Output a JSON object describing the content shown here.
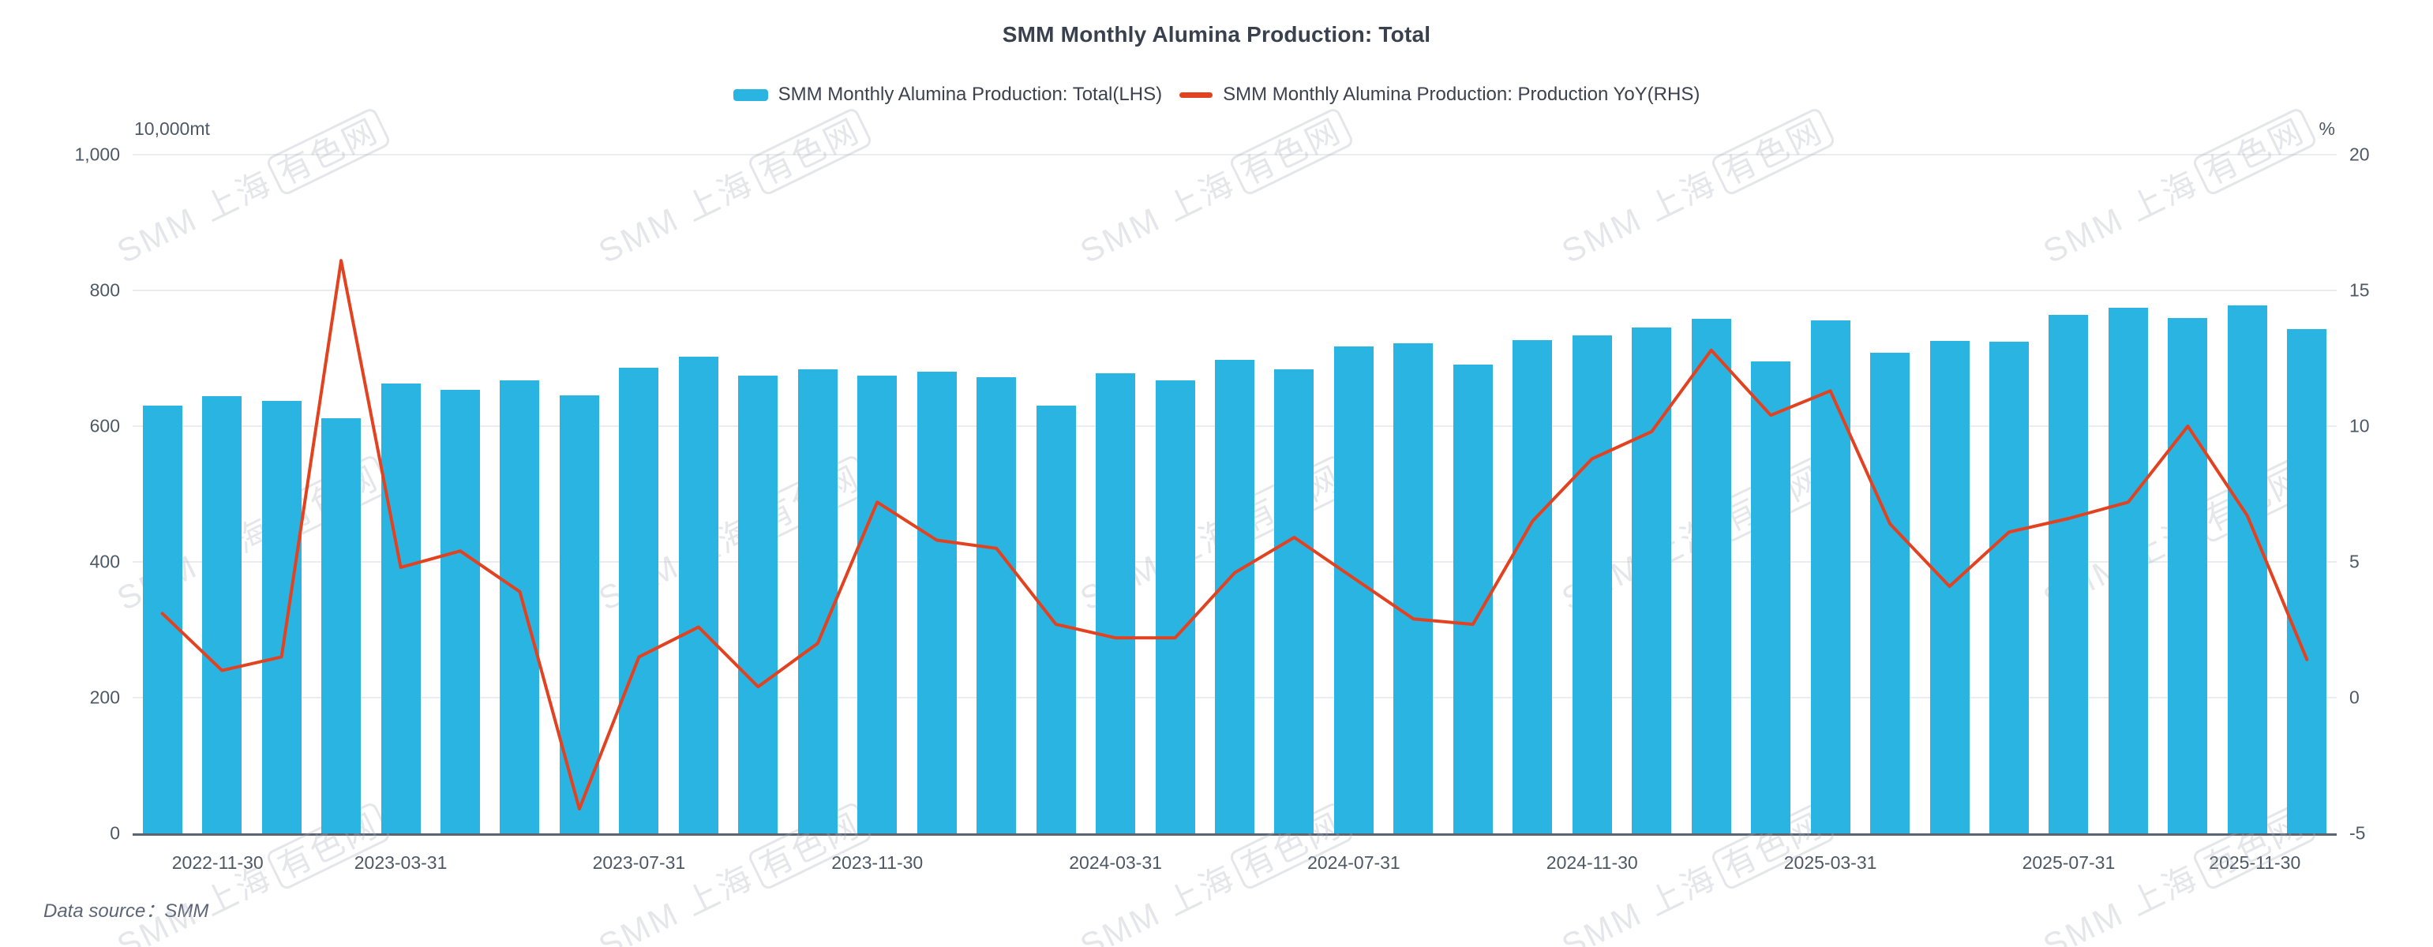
{
  "title": "SMM Monthly Alumina Production: Total",
  "legend": [
    {
      "label": "SMM Monthly Alumina Production: Total(LHS)",
      "type": "bar"
    },
    {
      "label": "SMM Monthly Alumina Production: Production YoY(RHS)",
      "type": "line"
    }
  ],
  "left_axis": {
    "unit": "10,000mt",
    "ticks": [
      "1,000",
      "800",
      "600",
      "400",
      "200",
      "0"
    ],
    "min": 0,
    "max": 1000
  },
  "right_axis": {
    "unit": "%",
    "ticks": [
      "20",
      "15",
      "10",
      "5",
      "0",
      "-5"
    ],
    "min": -5,
    "max": 20
  },
  "x_axis": {
    "shown_labels": [
      "2022-11-30",
      "2023-03-31",
      "2023-07-31",
      "2023-11-30",
      "2024-03-31",
      "2024-07-31",
      "2024-11-30",
      "2025-03-31",
      "2025-07-31",
      "2025-11-30"
    ],
    "shown_label_indices": [
      0,
      4,
      8,
      12,
      16,
      20,
      24,
      28,
      32,
      36
    ]
  },
  "footer": "Data source：SMM",
  "watermark": {
    "prefix": "SMM 上海",
    "boxed": "有色网"
  },
  "colors": {
    "bar": "#29B4E2",
    "line": "#E2421F",
    "grid": "#ebecf0",
    "axis": "#5b6471",
    "title_text": "#3a414e",
    "tick_text": "#4e5966"
  },
  "chart_data": {
    "type": "bar+line",
    "title": "SMM Monthly Alumina Production: Total",
    "x": [
      "2022-11-30",
      "2022-12-31",
      "2023-01-31",
      "2023-02-28",
      "2023-03-31",
      "2023-04-30",
      "2023-05-31",
      "2023-06-30",
      "2023-07-31",
      "2023-08-31",
      "2023-09-30",
      "2023-10-31",
      "2023-11-30",
      "2023-12-31",
      "2024-01-31",
      "2024-02-29",
      "2024-03-31",
      "2024-04-30",
      "2024-05-31",
      "2024-06-30",
      "2024-07-31",
      "2024-08-31",
      "2024-09-30",
      "2024-10-31",
      "2024-11-30",
      "2024-12-31",
      "2025-01-31",
      "2025-02-28",
      "2025-03-31",
      "2025-04-30",
      "2025-05-31",
      "2025-06-30",
      "2025-07-31",
      "2025-08-31",
      "2025-09-30",
      "2025-10-31",
      "2025-11-30"
    ],
    "series": [
      {
        "name": "SMM Monthly Alumina Production: Total(LHS)",
        "type": "bar",
        "axis": "left",
        "unit": "10,000mt",
        "values": [
          630,
          644,
          637,
          612,
          663,
          654,
          668,
          645,
          686,
          702,
          674,
          684,
          675,
          680,
          672,
          630,
          678,
          667,
          698,
          684,
          717,
          722,
          691,
          727,
          734,
          745,
          758,
          695,
          756,
          708,
          726,
          724,
          764,
          774,
          759,
          778,
          743
        ]
      },
      {
        "name": "SMM Monthly Alumina Production: Production YoY(RHS)",
        "type": "line",
        "axis": "right",
        "unit": "%",
        "values": [
          3.1,
          1.0,
          1.5,
          16.1,
          4.8,
          5.4,
          3.9,
          -4.1,
          1.5,
          2.6,
          0.4,
          2.0,
          7.2,
          5.8,
          5.5,
          2.7,
          2.2,
          2.2,
          4.6,
          5.9,
          4.4,
          2.9,
          2.7,
          6.5,
          8.8,
          9.8,
          12.8,
          10.4,
          11.3,
          6.4,
          4.1,
          6.1,
          6.6,
          7.2,
          10.0,
          6.7,
          1.4
        ]
      }
    ],
    "left_range": [
      0,
      1000
    ],
    "right_range": [
      -5,
      20
    ],
    "grid": true,
    "legend_position": "top"
  }
}
